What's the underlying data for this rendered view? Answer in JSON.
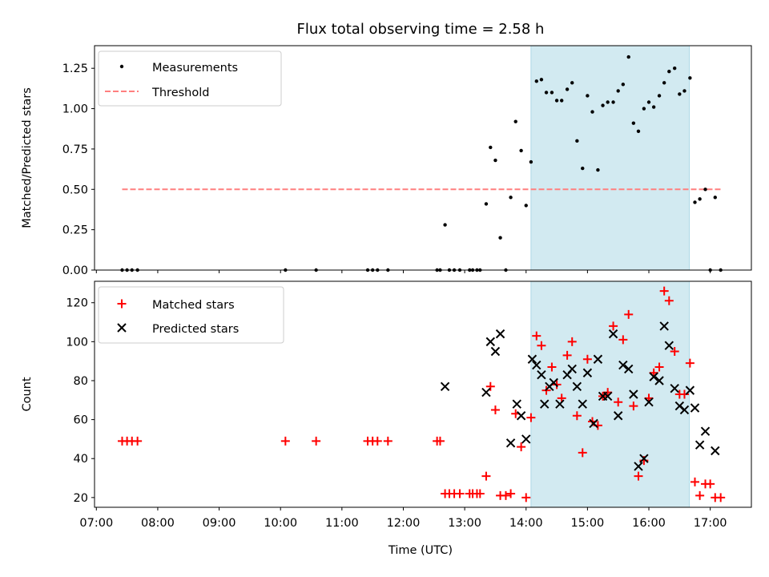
{
  "chart_data": {
    "title": "Flux total observing time = 2.58 h",
    "xlabel": "Time (UTC)",
    "x_units": "hours UTC",
    "xlim": [
      6.97,
      17.67
    ],
    "x_ticks": [
      {
        "value": 7,
        "label": "07:00"
      },
      {
        "value": 8,
        "label": "08:00"
      },
      {
        "value": 9,
        "label": "09:00"
      },
      {
        "value": 10,
        "label": "10:00"
      },
      {
        "value": 11,
        "label": "11:00"
      },
      {
        "value": 12,
        "label": "12:00"
      },
      {
        "value": 13,
        "label": "13:00"
      },
      {
        "value": 14,
        "label": "14:00"
      },
      {
        "value": 15,
        "label": "15:00"
      },
      {
        "value": 16,
        "label": "16:00"
      },
      {
        "value": 17,
        "label": "17:00"
      }
    ],
    "shaded_interval": {
      "start": 14.08,
      "end": 16.66,
      "color": "#add8e6"
    },
    "top_panel": {
      "type": "scatter",
      "ylabel": "Matched/Predicted stars",
      "ylim": [
        0,
        1.39
      ],
      "y_ticks": [
        {
          "value": 0,
          "label": "0.00"
        },
        {
          "value": 0.25,
          "label": "0.25"
        },
        {
          "value": 0.5,
          "label": "0.50"
        },
        {
          "value": 0.75,
          "label": "0.75"
        },
        {
          "value": 1.0,
          "label": "1.00"
        },
        {
          "value": 1.25,
          "label": "1.25"
        }
      ],
      "legend": {
        "position": "top-left",
        "measurements_label": "Measurements",
        "threshold_label": "Threshold"
      },
      "measurements": {
        "name": "Measurements",
        "color": "#000000",
        "x": [
          7.42,
          7.5,
          7.58,
          7.67,
          10.08,
          10.58,
          11.42,
          11.5,
          11.58,
          11.75,
          12.55,
          12.6,
          12.68,
          12.75,
          12.83,
          12.92,
          13.08,
          13.13,
          13.2,
          13.25,
          13.35,
          13.42,
          13.5,
          13.58,
          13.67,
          13.75,
          13.83,
          13.92,
          14.0,
          14.08,
          14.17,
          14.25,
          14.33,
          14.42,
          14.5,
          14.58,
          14.67,
          14.75,
          14.83,
          14.92,
          15.0,
          15.08,
          15.17,
          15.25,
          15.33,
          15.42,
          15.5,
          15.58,
          15.67,
          15.75,
          15.83,
          15.92,
          16.0,
          16.08,
          16.17,
          16.25,
          16.33,
          16.42,
          16.5,
          16.58,
          16.67,
          16.75,
          16.83,
          16.92,
          17.0,
          17.08,
          17.17
        ],
        "y": [
          0,
          0,
          0,
          0,
          0,
          0,
          0,
          0,
          0,
          0,
          0,
          0,
          0.28,
          0,
          0,
          0,
          0,
          0,
          0,
          0,
          0.41,
          0.76,
          0.68,
          0.2,
          0,
          0.45,
          0.92,
          0.74,
          0.4,
          0.67,
          1.17,
          1.18,
          1.1,
          1.1,
          1.05,
          1.05,
          1.12,
          1.16,
          0.8,
          0.63,
          1.08,
          0.98,
          0.62,
          1.02,
          1.04,
          1.04,
          1.11,
          1.15,
          1.32,
          0.91,
          0.86,
          1.0,
          1.04,
          1.01,
          1.08,
          1.16,
          1.23,
          1.25,
          1.09,
          1.11,
          1.19,
          0.42,
          0.44,
          0.5,
          0,
          0.45,
          0
        ]
      },
      "threshold": {
        "name": "Threshold",
        "value": 0.5,
        "x_range": [
          7.42,
          17.2
        ],
        "color": "#ff7f7f",
        "style": "dashed"
      }
    },
    "bottom_panel": {
      "type": "scatter",
      "ylabel": "Count",
      "ylim": [
        15,
        131
      ],
      "y_ticks": [
        {
          "value": 20,
          "label": "20"
        },
        {
          "value": 40,
          "label": "40"
        },
        {
          "value": 60,
          "label": "60"
        },
        {
          "value": 80,
          "label": "80"
        },
        {
          "value": 100,
          "label": "100"
        },
        {
          "value": 120,
          "label": "120"
        }
      ],
      "legend": {
        "position": "top-left",
        "matched_label": "Matched stars",
        "predicted_label": "Predicted stars"
      },
      "matched": {
        "name": "Matched stars",
        "color": "#ff0000",
        "marker": "plus",
        "x": [
          7.42,
          7.5,
          7.58,
          7.67,
          10.08,
          10.58,
          11.42,
          11.5,
          11.58,
          11.75,
          12.55,
          12.6,
          12.68,
          12.75,
          12.83,
          12.92,
          13.08,
          13.13,
          13.2,
          13.25,
          13.35,
          13.42,
          13.5,
          13.58,
          13.67,
          13.75,
          13.83,
          13.92,
          14.0,
          14.08,
          14.17,
          14.25,
          14.33,
          14.42,
          14.5,
          14.58,
          14.67,
          14.75,
          14.83,
          14.92,
          15.0,
          15.08,
          15.17,
          15.25,
          15.33,
          15.42,
          15.5,
          15.58,
          15.67,
          15.75,
          15.83,
          15.92,
          16.0,
          16.08,
          16.17,
          16.25,
          16.33,
          16.42,
          16.5,
          16.58,
          16.67,
          16.75,
          16.83,
          16.92,
          17.0,
          17.08,
          17.17
        ],
        "y": [
          49,
          49,
          49,
          49,
          49,
          49,
          49,
          49,
          49,
          49,
          49,
          49,
          22,
          22,
          22,
          22,
          22,
          22,
          22,
          22,
          31,
          77,
          65,
          21,
          21,
          22,
          63,
          46,
          20,
          61,
          103,
          98,
          75,
          87,
          78,
          71,
          93,
          100,
          62,
          43,
          91,
          59,
          57,
          72,
          74,
          108,
          69,
          101,
          114,
          67,
          31,
          39,
          71,
          84,
          87,
          126,
          121,
          95,
          73,
          73,
          89,
          28,
          21,
          27,
          27,
          20,
          20
        ]
      },
      "predicted": {
        "name": "Predicted stars",
        "color": "#000000",
        "marker": "x",
        "x": [
          12.68,
          13.35,
          13.42,
          13.5,
          13.58,
          13.75,
          13.85,
          13.92,
          14.0,
          14.1,
          14.17,
          14.25,
          14.3,
          14.38,
          14.45,
          14.55,
          14.67,
          14.75,
          14.83,
          14.92,
          15.0,
          15.1,
          15.17,
          15.25,
          15.33,
          15.42,
          15.5,
          15.58,
          15.67,
          15.75,
          15.83,
          15.92,
          16.0,
          16.08,
          16.17,
          16.25,
          16.33,
          16.42,
          16.5,
          16.58,
          16.67,
          16.75,
          16.83,
          16.92,
          17.08
        ],
        "y": [
          77,
          74,
          100,
          95,
          104,
          48,
          68,
          62,
          50,
          91,
          88,
          83,
          68,
          77,
          79,
          68,
          83,
          86,
          77,
          68,
          84,
          58,
          91,
          72,
          72,
          104,
          62,
          88,
          86,
          73,
          36,
          40,
          69,
          82,
          80,
          108,
          98,
          76,
          67,
          65,
          75,
          66,
          47,
          54,
          44
        ]
      }
    }
  }
}
